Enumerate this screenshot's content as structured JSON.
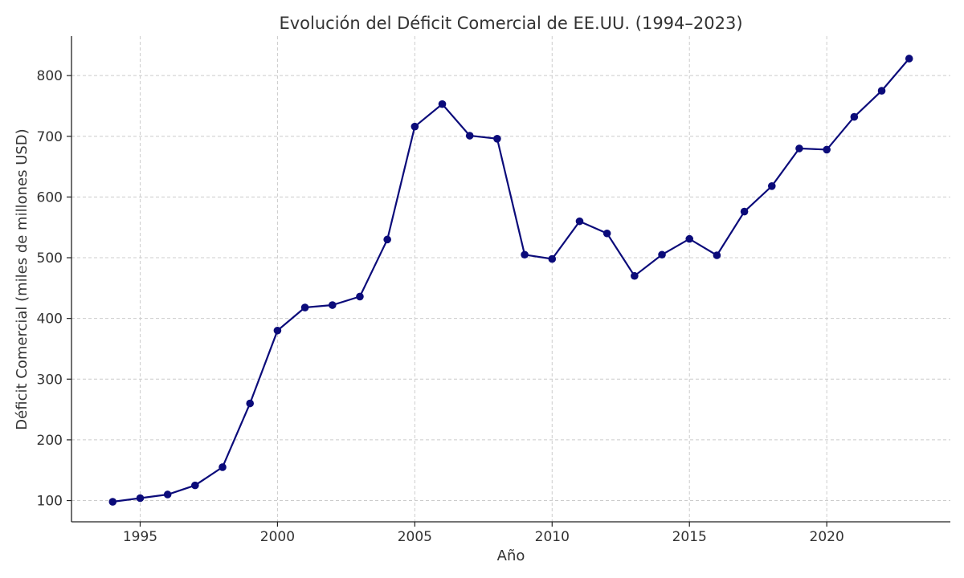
{
  "chart_data": {
    "type": "line",
    "title": "Evolución del Déficit Comercial de EE.UU. (1994–2023)",
    "xlabel": "Año",
    "ylabel": "Déficit Comercial (miles de millones USD)",
    "xlim": [
      1992.5,
      2024.5
    ],
    "ylim": [
      65,
      865
    ],
    "xticks": [
      1995,
      2000,
      2005,
      2010,
      2015,
      2020
    ],
    "yticks": [
      100,
      200,
      300,
      400,
      500,
      600,
      700,
      800
    ],
    "grid": true,
    "color": "#0b0b7a",
    "x": [
      1994,
      1995,
      1996,
      1997,
      1998,
      1999,
      2000,
      2001,
      2002,
      2003,
      2004,
      2005,
      2006,
      2007,
      2008,
      2009,
      2010,
      2011,
      2012,
      2013,
      2014,
      2015,
      2016,
      2017,
      2018,
      2019,
      2020,
      2021,
      2022,
      2023
    ],
    "values": [
      98,
      104,
      110,
      125,
      155,
      260,
      380,
      418,
      422,
      436,
      530,
      716,
      753,
      701,
      696,
      505,
      498,
      560,
      540,
      470,
      505,
      531,
      504,
      576,
      618,
      680,
      678,
      732,
      775,
      828
    ]
  }
}
